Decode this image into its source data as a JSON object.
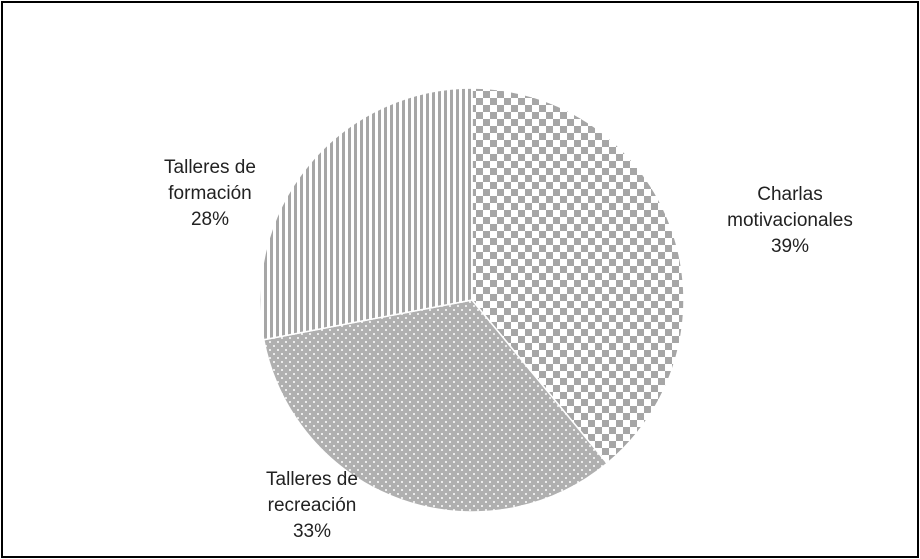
{
  "chart_data": {
    "type": "pie",
    "categories": [
      "Charlas motivacionales",
      "Talleres de recreación",
      "Talleres de formación"
    ],
    "values": [
      39,
      33,
      28
    ],
    "value_labels": [
      "39%",
      "33%",
      "28%"
    ],
    "colors": [
      "#a6a6a6",
      "#b0b0b0",
      "#a6a6a6"
    ],
    "patterns": [
      "checker",
      "dots",
      "stripes"
    ]
  }
}
